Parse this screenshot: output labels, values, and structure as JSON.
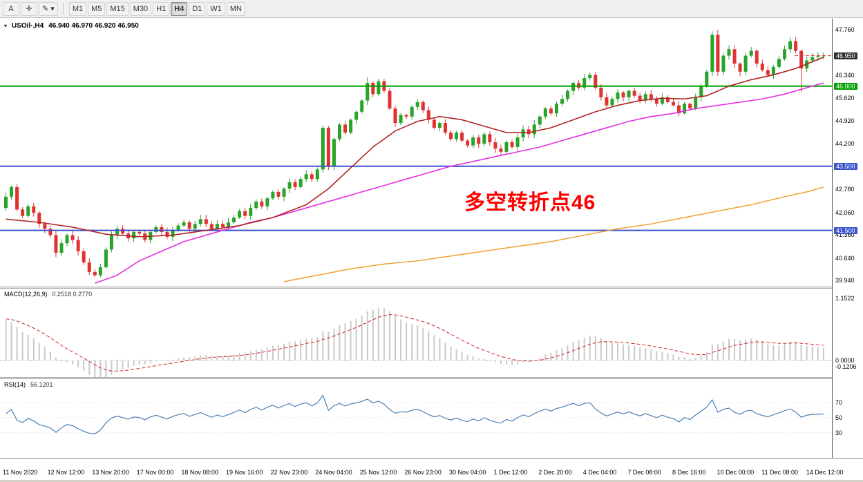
{
  "toolbar": {
    "cursor_tool": "A",
    "crosshair_tool": "✛",
    "draw_tool": "✎",
    "dropdown_arrow": "▾",
    "timeframes": [
      "M1",
      "M5",
      "M15",
      "M30",
      "H1",
      "H4",
      "D1",
      "W1",
      "MN"
    ],
    "active_timeframe": "H4"
  },
  "chart": {
    "dropdown_arrow": "▾",
    "title_symbol": "USOil·,H4",
    "title_ohlc": "46.940 46.970 46.920 46.950"
  },
  "annotation": {
    "text": "多空转折点46",
    "color": "#ff0000"
  },
  "indicators": {
    "macd_label": "MACD(12,26,9)",
    "macd_values": "0.2518 0.2770",
    "rsi_label": "RSI(14)",
    "rsi_value": "56.1201"
  },
  "chart_data": {
    "type": "candlestick",
    "symbol": "USOil",
    "timeframe": "H4",
    "current_ohlc": {
      "open": 46.94,
      "high": 46.97,
      "low": 46.92,
      "close": 46.95
    },
    "y_range": [
      39.8,
      47.95
    ],
    "price_axis_labels": [
      "47.760",
      "46.340",
      "45.620",
      "44.920",
      "44.200",
      "42.780",
      "42.060",
      "41.360",
      "40.640",
      "39.940"
    ],
    "price_badges": [
      {
        "value": "46.950",
        "price": 46.95,
        "bg": "#2f2f2f"
      },
      {
        "value": "46.000",
        "price": 46.0,
        "bg": "#00a000"
      },
      {
        "value": "43.500",
        "price": 43.5,
        "bg": "#3a52cc"
      },
      {
        "value": "41.500",
        "price": 41.5,
        "bg": "#3a52cc"
      }
    ],
    "hlines": [
      {
        "price": 46.0,
        "color": "#00a000"
      },
      {
        "price": 43.5,
        "color": "#3a52cc"
      },
      {
        "price": 41.5,
        "color": "#3a52cc"
      }
    ],
    "last_price": 46.95,
    "open_first": 42.2,
    "closes": [
      42.55,
      42.85,
      42.15,
      41.95,
      42.25,
      42.05,
      41.7,
      41.55,
      41.35,
      40.8,
      41.1,
      41.35,
      41.2,
      40.85,
      40.5,
      40.2,
      40.1,
      40.35,
      40.9,
      41.35,
      41.55,
      41.4,
      41.25,
      41.45,
      41.4,
      41.2,
      41.45,
      41.6,
      41.45,
      41.3,
      41.5,
      41.65,
      41.75,
      41.55,
      41.7,
      41.85,
      41.7,
      41.55,
      41.7,
      41.6,
      41.75,
      41.9,
      42.1,
      41.95,
      42.2,
      42.4,
      42.25,
      42.5,
      42.7,
      42.55,
      42.8,
      43.0,
      42.85,
      43.1,
      43.25,
      43.1,
      43.4,
      44.7,
      43.5,
      44.35,
      44.8,
      44.55,
      44.95,
      45.2,
      45.55,
      46.1,
      45.75,
      46.15,
      45.85,
      45.3,
      44.85,
      45.1,
      45.05,
      45.35,
      45.5,
      45.25,
      44.95,
      44.7,
      44.85,
      44.55,
      44.35,
      44.55,
      44.3,
      44.15,
      44.4,
      44.2,
      44.5,
      44.25,
      44.05,
      43.95,
      44.25,
      44.1,
      44.4,
      44.65,
      44.5,
      44.8,
      45.05,
      45.3,
      45.15,
      45.45,
      45.6,
      45.85,
      46.1,
      45.95,
      46.25,
      46.35,
      45.95,
      45.65,
      45.4,
      45.6,
      45.8,
      45.65,
      45.85,
      45.7,
      45.55,
      45.75,
      45.6,
      45.45,
      45.65,
      45.5,
      45.4,
      45.15,
      45.45,
      45.3,
      45.65,
      46.0,
      46.45,
      47.6,
      46.45,
      46.95,
      47.15,
      46.7,
      46.45,
      46.95,
      47.1,
      46.7,
      46.5,
      46.35,
      46.6,
      46.85,
      47.15,
      47.4,
      47.1,
      46.55,
      46.8,
      46.9,
      46.93,
      46.95
    ],
    "candle_overrides": {
      "58": {
        "l": 43.38
      },
      "65": {
        "h": 46.28
      },
      "127": {
        "h": 47.72
      },
      "128": {
        "h": 47.76,
        "l": 46.32
      },
      "143": {
        "l": 45.82
      }
    },
    "colors": {
      "bull": "#28a428",
      "bear": "#e03232",
      "ma_red": "#b22222",
      "ma_magenta": "#e62ee6",
      "ma_orange": "#f0a030",
      "rsi": "#4a7fb5",
      "macd_hist": "#c9c9c9",
      "macd_signal": "#cc2222"
    },
    "ma_red_anchors": [
      [
        0,
        41.85
      ],
      [
        6,
        41.75
      ],
      [
        12,
        41.6
      ],
      [
        18,
        41.38
      ],
      [
        24,
        41.3
      ],
      [
        30,
        41.35
      ],
      [
        36,
        41.5
      ],
      [
        42,
        41.65
      ],
      [
        48,
        41.9
      ],
      [
        54,
        42.3
      ],
      [
        58,
        42.8
      ],
      [
        62,
        43.45
      ],
      [
        66,
        44.1
      ],
      [
        70,
        44.6
      ],
      [
        74,
        44.9
      ],
      [
        78,
        45.05
      ],
      [
        82,
        44.95
      ],
      [
        86,
        44.75
      ],
      [
        90,
        44.55
      ],
      [
        94,
        44.55
      ],
      [
        98,
        44.7
      ],
      [
        102,
        44.95
      ],
      [
        106,
        45.2
      ],
      [
        110,
        45.4
      ],
      [
        114,
        45.55
      ],
      [
        118,
        45.62
      ],
      [
        122,
        45.6
      ],
      [
        126,
        45.7
      ],
      [
        130,
        46.0
      ],
      [
        134,
        46.2
      ],
      [
        138,
        46.35
      ],
      [
        142,
        46.55
      ],
      [
        147,
        46.9
      ]
    ],
    "ma_magenta_anchors": [
      [
        16,
        39.85
      ],
      [
        20,
        40.1
      ],
      [
        24,
        40.55
      ],
      [
        28,
        40.85
      ],
      [
        32,
        41.15
      ],
      [
        36,
        41.35
      ],
      [
        40,
        41.55
      ],
      [
        44,
        41.75
      ],
      [
        48,
        41.9
      ],
      [
        52,
        42.1
      ],
      [
        56,
        42.3
      ],
      [
        60,
        42.5
      ],
      [
        64,
        42.7
      ],
      [
        68,
        42.9
      ],
      [
        72,
        43.1
      ],
      [
        76,
        43.3
      ],
      [
        80,
        43.5
      ],
      [
        84,
        43.65
      ],
      [
        88,
        43.8
      ],
      [
        92,
        43.95
      ],
      [
        96,
        44.1
      ],
      [
        100,
        44.3
      ],
      [
        104,
        44.5
      ],
      [
        108,
        44.7
      ],
      [
        112,
        44.9
      ],
      [
        116,
        45.05
      ],
      [
        120,
        45.15
      ],
      [
        124,
        45.3
      ],
      [
        128,
        45.4
      ],
      [
        132,
        45.5
      ],
      [
        136,
        45.6
      ],
      [
        140,
        45.75
      ],
      [
        144,
        45.95
      ],
      [
        147,
        46.1
      ]
    ],
    "ma_orange_anchors": [
      [
        50,
        39.9
      ],
      [
        56,
        40.1
      ],
      [
        62,
        40.3
      ],
      [
        68,
        40.45
      ],
      [
        74,
        40.55
      ],
      [
        80,
        40.7
      ],
      [
        86,
        40.85
      ],
      [
        92,
        41.0
      ],
      [
        98,
        41.15
      ],
      [
        104,
        41.35
      ],
      [
        110,
        41.55
      ],
      [
        116,
        41.7
      ],
      [
        122,
        41.9
      ],
      [
        128,
        42.1
      ],
      [
        134,
        42.3
      ],
      [
        140,
        42.55
      ],
      [
        144,
        42.7
      ],
      [
        147,
        42.85
      ]
    ],
    "macd": {
      "params": "12,26,9",
      "value_main": 0.2518,
      "value_signal": 0.277,
      "axis_labels": [
        {
          "text": "1.1522",
          "value": 1.1522
        },
        {
          "text": "0.0000",
          "value": 0.0
        },
        {
          "text": "-0.1206",
          "value": -0.1206
        }
      ]
    },
    "rsi": {
      "period": 14,
      "value": 56.1201,
      "levels": [
        {
          "text": "70",
          "value": 70
        },
        {
          "text": "50",
          "value": 50
        },
        {
          "text": "30",
          "value": 30
        }
      ]
    },
    "time_labels": [
      "11 Nov 2020",
      "12 Nov 12:00",
      "13 Nov 20:00",
      "17 Nov 00:00",
      "18 Nov 08:00",
      "19 Nov 16:00",
      "22 Nov 23:00",
      "24 Nov 04:00",
      "25 Nov 12:00",
      "26 Nov 23:00",
      "30 Nov 04:00",
      "1 Dec 12:00",
      "2 Dec 20:00",
      "4 Dec 04:00",
      "7 Dec 08:00",
      "8 Dec 16:00",
      "10 Dec 00:00",
      "11 Dec 08:00",
      "14 Dec 12:00"
    ]
  }
}
